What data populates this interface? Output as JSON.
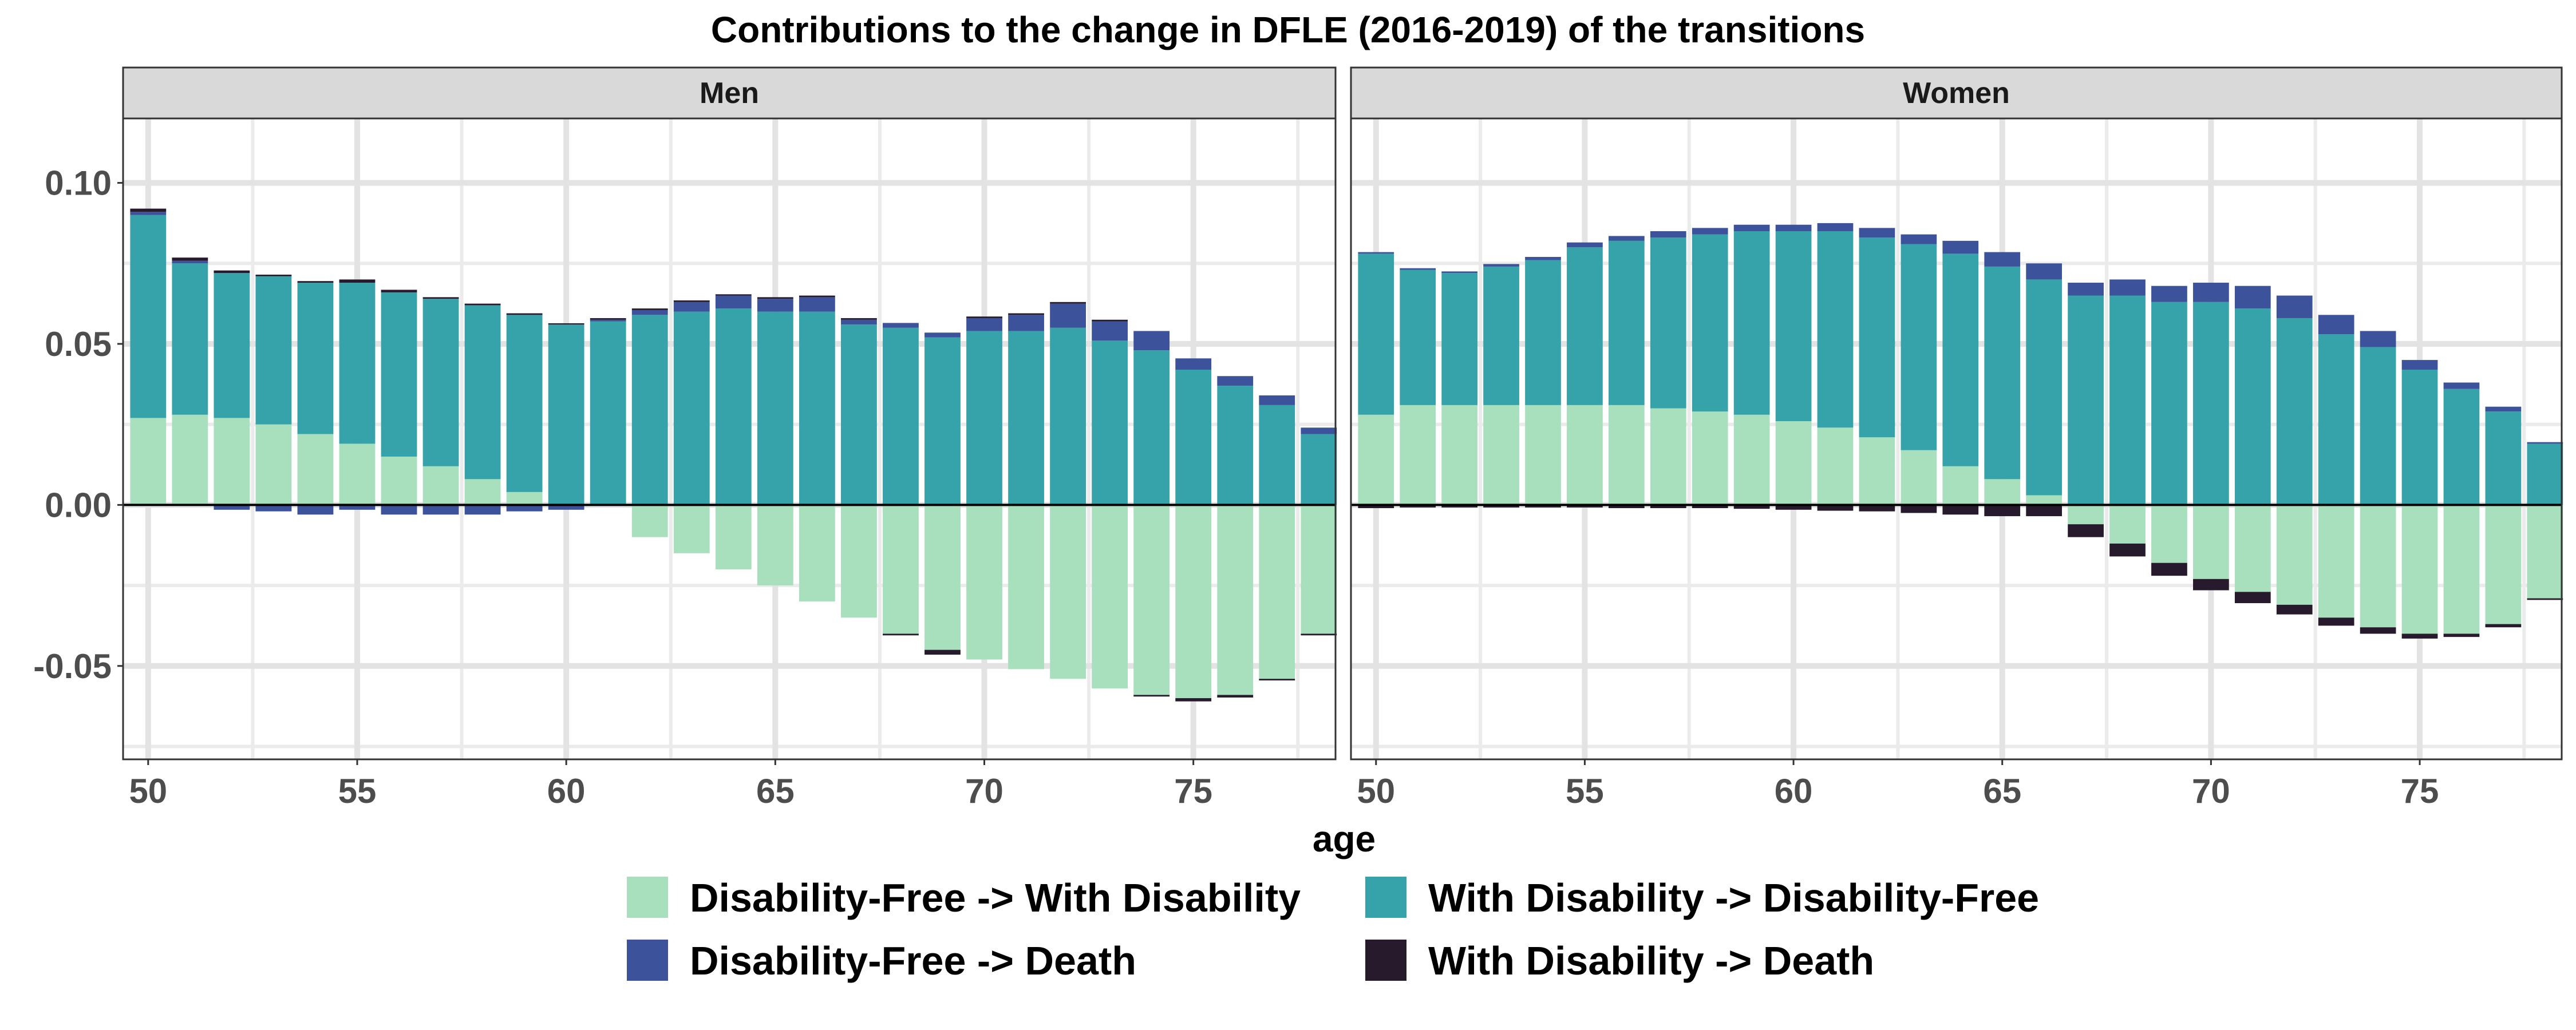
{
  "chart_data": {
    "type": "bar",
    "title": "Contributions to the change in DFLE (2016-2019) of the transitions",
    "xlabel": "age",
    "ylabel": "",
    "xlim": [
      49.4,
      78.4
    ],
    "ylim": [
      -0.079,
      0.12
    ],
    "x_ticks": [
      50,
      55,
      60,
      65,
      70,
      75
    ],
    "x_tick_labels": [
      "50",
      "55",
      "60",
      "65",
      "70",
      "75"
    ],
    "y_ticks": [
      -0.05,
      0,
      0.05,
      0.1
    ],
    "y_tick_labels": [
      "-0.05",
      "0.00",
      "0.05",
      "0.10"
    ],
    "grid": true,
    "stacked": true,
    "legend_position": "bottom",
    "ages": [
      50,
      51,
      52,
      53,
      54,
      55,
      56,
      57,
      58,
      59,
      60,
      61,
      62,
      63,
      64,
      65,
      66,
      67,
      68,
      69,
      70,
      71,
      72,
      73,
      74,
      75,
      76,
      77,
      78
    ],
    "series_info": [
      {
        "key": "df_wd",
        "name": "Disability-Free -> With Disability",
        "color": "#a8e0bd"
      },
      {
        "key": "wd_df",
        "name": "With Disability -> Disability-Free",
        "color": "#36a3ab"
      },
      {
        "key": "df_death",
        "name": "Disability-Free -> Death",
        "color": "#3c529a"
      },
      {
        "key": "wd_death",
        "name": "With Disability -> Death",
        "color": "#261a2c"
      }
    ],
    "facets": [
      {
        "label": "Men",
        "series": {
          "df_wd": [
            0.027,
            0.028,
            0.027,
            0.025,
            0.022,
            0.019,
            0.015,
            0.012,
            0.008,
            0.004,
            0.0,
            0.0,
            -0.01,
            -0.015,
            -0.02,
            -0.025,
            -0.03,
            -0.035,
            -0.04,
            -0.045,
            -0.048,
            -0.051,
            -0.054,
            -0.057,
            -0.059,
            -0.06,
            -0.059,
            -0.054,
            -0.04
          ],
          "wd_df": [
            0.063,
            0.047,
            0.045,
            0.046,
            0.047,
            0.05,
            0.051,
            0.052,
            0.054,
            0.055,
            0.056,
            0.057,
            0.059,
            0.06,
            0.061,
            0.06,
            0.06,
            0.056,
            0.055,
            0.052,
            0.054,
            0.054,
            0.055,
            0.051,
            0.048,
            0.042,
            0.037,
            0.031,
            0.022
          ],
          "df_death": [
            0.001,
            0.0008,
            -0.0015,
            -0.002,
            -0.003,
            -0.0015,
            -0.003,
            -0.003,
            -0.003,
            -0.002,
            -0.0015,
            0.0005,
            0.0015,
            0.003,
            0.004,
            0.004,
            0.0045,
            0.0015,
            0.0015,
            0.0015,
            0.004,
            0.005,
            0.0075,
            0.006,
            0.006,
            0.0035,
            0.003,
            0.003,
            0.002
          ],
          "wd_death": [
            0.001,
            0.001,
            0.0008,
            0.0005,
            0.0005,
            0.001,
            0.0008,
            0.0005,
            0.0005,
            0.0005,
            0.0004,
            0.0005,
            0.0005,
            0.0005,
            0.0004,
            0.0005,
            0.0005,
            0.0005,
            -0.0005,
            -0.0015,
            0.0005,
            0.0005,
            0.0005,
            0.0005,
            -0.0005,
            -0.001,
            -0.0008,
            -0.0005,
            -0.0005
          ]
        }
      },
      {
        "label": "Women",
        "series": {
          "df_wd": [
            0.028,
            0.031,
            0.031,
            0.031,
            0.031,
            0.031,
            0.031,
            0.03,
            0.029,
            0.028,
            0.026,
            0.024,
            0.021,
            0.017,
            0.012,
            0.008,
            0.003,
            -0.006,
            -0.012,
            -0.018,
            -0.023,
            -0.027,
            -0.031,
            -0.035,
            -0.038,
            -0.04,
            -0.04,
            -0.037,
            -0.029
          ],
          "wd_df": [
            0.05,
            0.042,
            0.041,
            0.043,
            0.045,
            0.049,
            0.051,
            0.053,
            0.055,
            0.057,
            0.059,
            0.061,
            0.062,
            0.064,
            0.066,
            0.066,
            0.067,
            0.065,
            0.065,
            0.063,
            0.063,
            0.061,
            0.058,
            0.053,
            0.049,
            0.042,
            0.036,
            0.029,
            0.019
          ],
          "df_death": [
            0.0005,
            0.0005,
            0.0005,
            0.0008,
            0.001,
            0.0015,
            0.0015,
            0.002,
            0.002,
            0.002,
            0.002,
            0.0025,
            0.003,
            0.003,
            0.004,
            0.0045,
            0.005,
            0.004,
            0.005,
            0.005,
            0.006,
            0.007,
            0.007,
            0.006,
            0.005,
            0.003,
            0.002,
            0.0015,
            0.0005
          ],
          "wd_death": [
            -0.001,
            -0.0008,
            -0.0008,
            -0.0008,
            -0.0008,
            -0.0008,
            -0.001,
            -0.001,
            -0.001,
            -0.0012,
            -0.0015,
            -0.0018,
            -0.002,
            -0.0025,
            -0.003,
            -0.0035,
            -0.0035,
            -0.004,
            -0.004,
            -0.004,
            -0.0035,
            -0.0035,
            -0.003,
            -0.0025,
            -0.002,
            -0.0015,
            -0.001,
            -0.001,
            -0.0005
          ]
        }
      }
    ]
  }
}
